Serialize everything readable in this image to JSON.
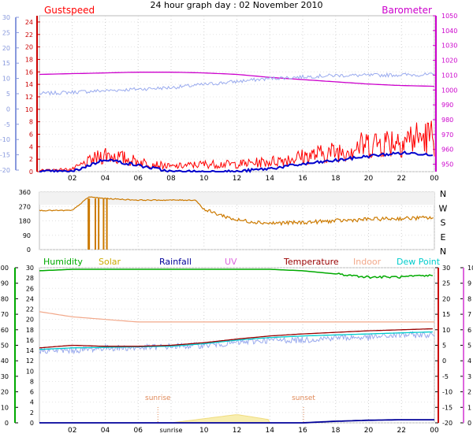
{
  "title": "24 hour graph day : 02 November 2010",
  "x_ticks": [
    "02",
    "04",
    "06",
    "08",
    "10",
    "12",
    "14",
    "16",
    "18",
    "20",
    "22",
    "00"
  ],
  "x_ticks_bottom": [
    "02",
    "04",
    "06",
    "sunrise",
    "10",
    "12",
    "14",
    "16",
    "18",
    "20",
    "22",
    "00"
  ],
  "colors": {
    "gust": "#ff0000",
    "wind": "#0000cc",
    "baro": "#cc00cc",
    "temp_outer": "#99aaee",
    "dir": "#cc7a00",
    "humidity": "#00aa00",
    "solar": "#ccaa00",
    "rainfall": "#000099",
    "uv": "#dd66dd",
    "temperature": "#990000",
    "indoor": "#f2a88a",
    "dewpoint": "#00cccc"
  },
  "chart_data": [
    {
      "type": "line",
      "panel": "top",
      "title": "",
      "legend": [
        "Gustspeed",
        "Barometer"
      ],
      "left_axis_outer": {
        "ticks": [
          30,
          25,
          20,
          15,
          10,
          5,
          0,
          -5,
          -10,
          -15,
          -20
        ],
        "range": [
          -20,
          30
        ]
      },
      "left_axis_inner": {
        "ticks": [
          24,
          22,
          20,
          18,
          16,
          14,
          12,
          10,
          8,
          6,
          4,
          2,
          0
        ],
        "range": [
          0,
          25
        ]
      },
      "right_axis": {
        "ticks": [
          1050,
          1040,
          1030,
          1020,
          1010,
          1000,
          990,
          980,
          970,
          960,
          950
        ],
        "range": [
          945,
          1050
        ]
      },
      "x_hours": [
        0,
        2,
        4,
        6,
        8,
        10,
        12,
        14,
        16,
        18,
        20,
        22,
        24
      ],
      "series": [
        {
          "name": "Barometer",
          "axis": "right",
          "values": [
            1010.5,
            1011,
            1011.5,
            1012,
            1012,
            1011.5,
            1010.5,
            1008.5,
            1007,
            1005.5,
            1004,
            1003,
            1002.5
          ]
        },
        {
          "axis": "outer",
          "values": [
            5,
            5.5,
            6,
            6.5,
            7,
            8,
            9,
            10,
            10.5,
            11,
            11,
            11.2,
            11.2
          ]
        },
        {
          "name": "Gustspeed",
          "axis": "inner",
          "values": [
            0.3,
            0.5,
            3.5,
            2,
            1,
            1.5,
            1.5,
            2,
            3,
            4,
            5.5,
            6.5,
            7
          ]
        },
        {
          "axis": "inner",
          "values": [
            0,
            0,
            2,
            1,
            0,
            0,
            0,
            0.5,
            1.2,
            1.8,
            2.5,
            3,
            2.8
          ]
        }
      ]
    },
    {
      "type": "line",
      "panel": "middle",
      "title": "",
      "left_axis": {
        "ticks": [
          360,
          270,
          180,
          90,
          0
        ],
        "range": [
          0,
          360
        ]
      },
      "right_labels": [
        "N",
        "W",
        "S",
        "E",
        "N"
      ],
      "x_hours": [
        0,
        2,
        3,
        4,
        6,
        8,
        9.5,
        10,
        12,
        14,
        16,
        18,
        20,
        22,
        24
      ],
      "series": [
        {
          "values": [
            245,
            245,
            330,
            320,
            310,
            310,
            310,
            250,
            185,
            165,
            170,
            180,
            190,
            195,
            200
          ]
        }
      ]
    },
    {
      "type": "line",
      "panel": "bottom",
      "title": "",
      "legend": [
        "Humidity",
        "Solar",
        "Rainfall",
        "UV",
        "Temperature",
        "Indoor",
        "Dew Point"
      ],
      "left_axis_outer": {
        "ticks": [
          100,
          90,
          80,
          70,
          60,
          50,
          40,
          30,
          20,
          10,
          0
        ],
        "range": [
          0,
          100
        ]
      },
      "left_axis_inner": {
        "ticks": [
          30,
          28,
          26,
          24,
          22,
          20,
          18,
          16,
          14,
          12,
          10,
          8,
          6,
          4,
          2,
          0
        ],
        "range": [
          0,
          30
        ]
      },
      "right_axis_inner": {
        "ticks": [
          30,
          25,
          20,
          15,
          10,
          5,
          0,
          -5,
          -10,
          -15,
          -20
        ],
        "range": [
          -20,
          30
        ]
      },
      "right_axis_outer": {
        "ticks": [
          10,
          9,
          8,
          7,
          6,
          5,
          4,
          3,
          2,
          1,
          0
        ],
        "range": [
          0,
          10
        ]
      },
      "annotations": [
        "sunrise",
        "sunset"
      ],
      "x_hours": [
        0,
        2,
        4,
        6,
        8,
        10,
        12,
        14,
        16,
        18,
        20,
        22,
        24
      ],
      "series": [
        {
          "name": "Humidity",
          "values": [
            98,
            99,
            99,
            99,
            99,
            99,
            99,
            99,
            98,
            96,
            94,
            94,
            95
          ]
        },
        {
          "name": "Indoor",
          "values": [
            21.5,
            20.5,
            20,
            19.5,
            19.5,
            19.5,
            19.5,
            19.5,
            19.5,
            19.5,
            19.5,
            19.5,
            19.5
          ]
        },
        {
          "name": "Temperature",
          "values": [
            14.5,
            15,
            14.8,
            14.8,
            15,
            15.5,
            16.2,
            16.8,
            17.2,
            17.5,
            17.8,
            18,
            18.2
          ]
        },
        {
          "name": "Dew Point",
          "values": [
            14.2,
            14.5,
            14.6,
            14.7,
            14.8,
            15.3,
            16,
            16.5,
            16.8,
            17,
            17.2,
            17.4,
            17.6
          ]
        },
        {
          "values": [
            14,
            14,
            14.5,
            14.5,
            14.8,
            15,
            15.5,
            16,
            16,
            16.5,
            16.5,
            17,
            17
          ]
        },
        {
          "name": "Solar",
          "values": [
            0,
            0,
            0,
            0,
            0,
            0.8,
            1.6,
            0.6,
            0,
            0,
            0,
            0,
            0
          ]
        },
        {
          "name": "Rainfall",
          "values": [
            0,
            0,
            0,
            0,
            0,
            0,
            0,
            0,
            0,
            0.3,
            0.5,
            0.6,
            0.6
          ]
        }
      ]
    }
  ]
}
